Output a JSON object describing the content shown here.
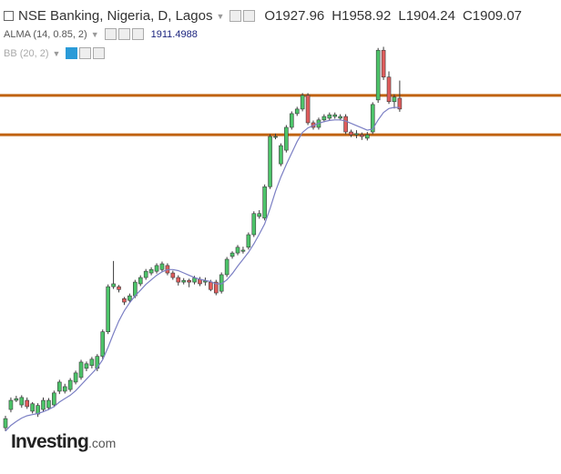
{
  "chart_data": {
    "type": "candlestick",
    "title": "NSE Banking, Nigeria, D, Lagos",
    "ohlc_labels": [
      "O",
      "H",
      "L",
      "C"
    ],
    "indicators": [
      "ALMA (14, 0.85, 2)",
      "BB (20, 2)"
    ],
    "logo": [
      "Investing",
      ".com"
    ],
    "ylim": [
      1270,
      2100
    ],
    "up_color": "#4cc469",
    "down_color": "#e05c5c",
    "border_color": "#3b3b3b",
    "open": [
      1351,
      1383,
      1399,
      1391,
      1399,
      1380,
      1375,
      1383,
      1386,
      1391,
      1415,
      1415,
      1418,
      1431,
      1439,
      1455,
      1460,
      1455,
      1476,
      1519,
      1598,
      1598,
      1577,
      1574,
      1582,
      1603,
      1614,
      1622,
      1625,
      1628,
      1635,
      1622,
      1614,
      1606,
      1609,
      1606,
      1611,
      1606,
      1606,
      1606,
      1590,
      1619,
      1651,
      1657,
      1660,
      1667,
      1689,
      1721,
      1718,
      1773,
      1861,
      1813,
      1837,
      1877,
      1901,
      1909,
      1933,
      1885,
      1877,
      1890,
      1893,
      1896,
      1893,
      1896,
      1869,
      1864,
      1864,
      1858,
      1869,
      1925,
      2012,
      1965,
      1922,
      1927.96
    ],
    "high": [
      1372,
      1404,
      1407,
      1408,
      1404,
      1396,
      1394,
      1404,
      1403,
      1416,
      1435,
      1428,
      1438,
      1451,
      1470,
      1467,
      1475,
      1480,
      1523,
      1602,
      1643,
      1601,
      1580,
      1586,
      1610,
      1618,
      1629,
      1632,
      1639,
      1642,
      1639,
      1626,
      1618,
      1613,
      1612,
      1617,
      1615,
      1614,
      1610,
      1610,
      1623,
      1650,
      1660,
      1671,
      1668,
      1693,
      1730,
      1732,
      1777,
      1865,
      1866,
      1849,
      1881,
      1905,
      1913,
      1937,
      1937,
      1889,
      1894,
      1900,
      1903,
      1903,
      1900,
      1900,
      1873,
      1872,
      1868,
      1869,
      1921,
      2016,
      2018,
      1975,
      1935,
      1958.92
    ],
    "low": [
      1345,
      1378,
      1396,
      1386,
      1384,
      1376,
      1370,
      1379,
      1382,
      1387,
      1410,
      1411,
      1414,
      1427,
      1435,
      1450,
      1455,
      1450,
      1471,
      1515,
      1594,
      1588,
      1566,
      1570,
      1578,
      1599,
      1610,
      1618,
      1621,
      1624,
      1618,
      1610,
      1600,
      1602,
      1597,
      1602,
      1599,
      1600,
      1590,
      1583,
      1586,
      1615,
      1647,
      1653,
      1656,
      1663,
      1685,
      1717,
      1714,
      1769,
      1856,
      1809,
      1833,
      1873,
      1897,
      1905,
      1881,
      1873,
      1873,
      1886,
      1889,
      1892,
      1889,
      1865,
      1860,
      1858,
      1855,
      1854,
      1865,
      1920,
      1960,
      1918,
      1910,
      1904.24
    ],
    "close": [
      1367,
      1399,
      1402,
      1404,
      1388,
      1393,
      1390,
      1399,
      1399,
      1412,
      1431,
      1423,
      1434,
      1447,
      1466,
      1463,
      1471,
      1476,
      1519,
      1598,
      1603,
      1593,
      1571,
      1582,
      1606,
      1614,
      1625,
      1628,
      1635,
      1638,
      1622,
      1614,
      1606,
      1609,
      1606,
      1613,
      1603,
      1608,
      1593,
      1587,
      1619,
      1646,
      1657,
      1667,
      1662,
      1689,
      1726,
      1726,
      1773,
      1861,
      1861,
      1845,
      1877,
      1901,
      1909,
      1933,
      1885,
      1877,
      1890,
      1896,
      1899,
      1899,
      1896,
      1869,
      1864,
      1866,
      1861,
      1864,
      1917,
      2012,
      1965,
      1922,
      1930,
      1909.07
    ],
    "alma": {
      "color": "#7b7fc4",
      "values": [
        1345,
        1355,
        1362,
        1368,
        1372,
        1374,
        1376,
        1379,
        1383,
        1388,
        1396,
        1402,
        1408,
        1416,
        1426,
        1436,
        1446,
        1456,
        1470,
        1492,
        1516,
        1538,
        1556,
        1570,
        1582,
        1592,
        1602,
        1610,
        1618,
        1624,
        1628,
        1628,
        1626,
        1622,
        1618,
        1614,
        1611,
        1609,
        1607,
        1603,
        1603,
        1610,
        1621,
        1634,
        1646,
        1658,
        1673,
        1690,
        1708,
        1735,
        1765,
        1790,
        1812,
        1832,
        1852,
        1868,
        1876,
        1880,
        1884,
        1887,
        1889,
        1890,
        1890,
        1888,
        1884,
        1880,
        1876,
        1872,
        1874,
        1890,
        1903,
        1910,
        1912,
        1911.4988
      ]
    },
    "levels": {
      "color": "#c0620f",
      "values": [
        1933,
        1864
      ]
    }
  }
}
